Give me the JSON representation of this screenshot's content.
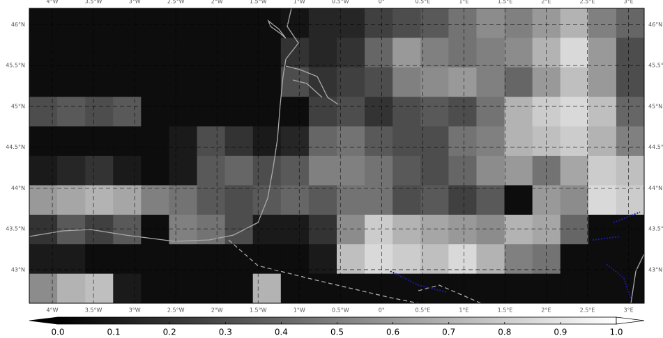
{
  "chart_data": {
    "type": "raster",
    "xlim": [
      -4.28,
      3.19
    ],
    "ylim": [
      42.59,
      46.2
    ],
    "xticks": [
      {
        "value": -4,
        "label": "4°W"
      },
      {
        "value": -3.5,
        "label": "3.5°W"
      },
      {
        "value": -3,
        "label": "3°W"
      },
      {
        "value": -2.5,
        "label": "2.5°W"
      },
      {
        "value": -2,
        "label": "2°W"
      },
      {
        "value": -1.5,
        "label": "1.5°W"
      },
      {
        "value": -1,
        "label": "1°W"
      },
      {
        "value": -0.5,
        "label": "0.5°W"
      },
      {
        "value": 0,
        "label": "0°"
      },
      {
        "value": 0.5,
        "label": "0.5°E"
      },
      {
        "value": 1,
        "label": "1°E"
      },
      {
        "value": 1.5,
        "label": "1.5°E"
      },
      {
        "value": 2,
        "label": "2°E"
      },
      {
        "value": 2.5,
        "label": "2.5°E"
      },
      {
        "value": 3,
        "label": "3°E"
      }
    ],
    "yticks": [
      {
        "value": 43,
        "label": "43°N"
      },
      {
        "value": 43.5,
        "label": "43.5°N"
      },
      {
        "value": 44,
        "label": "44°N"
      },
      {
        "value": 44.5,
        "label": "44.5°N"
      },
      {
        "value": 45,
        "label": "45°N"
      },
      {
        "value": 45.5,
        "label": "45.5°N"
      },
      {
        "value": 46,
        "label": "46°N"
      }
    ],
    "grid": true,
    "cells": [
      [
        0.05,
        0.05,
        0.05,
        0.05,
        0.05,
        0.05,
        0.05,
        0.05,
        0.05,
        0.08,
        0.15,
        0.15,
        0.25,
        0.3,
        0.35,
        0.45,
        0.55,
        0.5,
        0.6,
        0.7,
        0.5,
        0.4
      ],
      [
        0.05,
        0.05,
        0.05,
        0.05,
        0.05,
        0.05,
        0.05,
        0.05,
        0.05,
        0.2,
        0.15,
        0.2,
        0.4,
        0.6,
        0.5,
        0.45,
        0.5,
        0.55,
        0.7,
        0.85,
        0.6,
        0.3
      ],
      [
        0.05,
        0.05,
        0.05,
        0.05,
        0.05,
        0.05,
        0.05,
        0.05,
        0.05,
        0.3,
        0.2,
        0.25,
        0.3,
        0.5,
        0.55,
        0.6,
        0.5,
        0.4,
        0.6,
        0.75,
        0.6,
        0.3
      ],
      [
        0.3,
        0.35,
        0.3,
        0.35,
        0.05,
        0.05,
        0.05,
        0.05,
        0.05,
        0.05,
        0.25,
        0.3,
        0.2,
        0.3,
        0.35,
        0.3,
        0.45,
        0.7,
        0.8,
        0.85,
        0.75,
        0.4
      ],
      [
        0.05,
        0.05,
        0.05,
        0.05,
        0.05,
        0.1,
        0.3,
        0.2,
        0.1,
        0.15,
        0.4,
        0.45,
        0.35,
        0.3,
        0.3,
        0.45,
        0.5,
        0.7,
        0.75,
        0.8,
        0.7,
        0.5
      ],
      [
        0.1,
        0.15,
        0.2,
        0.1,
        0.05,
        0.1,
        0.35,
        0.4,
        0.3,
        0.35,
        0.5,
        0.5,
        0.45,
        0.35,
        0.3,
        0.4,
        0.55,
        0.6,
        0.45,
        0.65,
        0.8,
        0.75
      ],
      [
        0.6,
        0.65,
        0.7,
        0.65,
        0.5,
        0.45,
        0.35,
        0.3,
        0.35,
        0.4,
        0.35,
        0.45,
        0.45,
        0.3,
        0.35,
        0.25,
        0.35,
        0.05,
        0.6,
        0.55,
        0.85,
        0.8
      ],
      [
        0.2,
        0.35,
        0.25,
        0.35,
        0.05,
        0.5,
        0.45,
        0.3,
        0.1,
        0.1,
        0.2,
        0.55,
        0.8,
        0.7,
        0.65,
        0.6,
        0.55,
        0.7,
        0.65,
        0.4,
        0.05,
        0.05
      ],
      [
        0.1,
        0.1,
        0.05,
        0.05,
        0.05,
        0.05,
        0.05,
        0.05,
        0.05,
        0.05,
        0.1,
        0.75,
        0.85,
        0.8,
        0.75,
        0.85,
        0.7,
        0.5,
        0.45,
        0.05,
        0.05,
        0.05
      ],
      [
        0.55,
        0.7,
        0.75,
        0.1,
        0.05,
        0.05,
        0.05,
        0.05,
        0.7,
        0.05,
        0.05,
        0.05,
        0.05,
        0.05,
        0.05,
        0.05,
        0.05,
        0.05,
        0.05,
        0.05,
        0.05,
        0.05
      ]
    ],
    "clim": [
      0,
      1
    ],
    "colorbar_ticks": [
      {
        "value": 0,
        "label": "0.0"
      },
      {
        "value": 0.1,
        "label": "0.1"
      },
      {
        "value": 0.2,
        "label": "0.2"
      },
      {
        "value": 0.3,
        "label": "0.3"
      },
      {
        "value": 0.4,
        "label": "0.4"
      },
      {
        "value": 0.5,
        "label": "0.5"
      },
      {
        "value": 0.6,
        "label": "0.6"
      },
      {
        "value": 0.7,
        "label": "0.7"
      },
      {
        "value": 0.8,
        "label": "0.8"
      },
      {
        "value": 0.9,
        "label": "0.9"
      },
      {
        "value": 1,
        "label": "1.0"
      }
    ]
  }
}
